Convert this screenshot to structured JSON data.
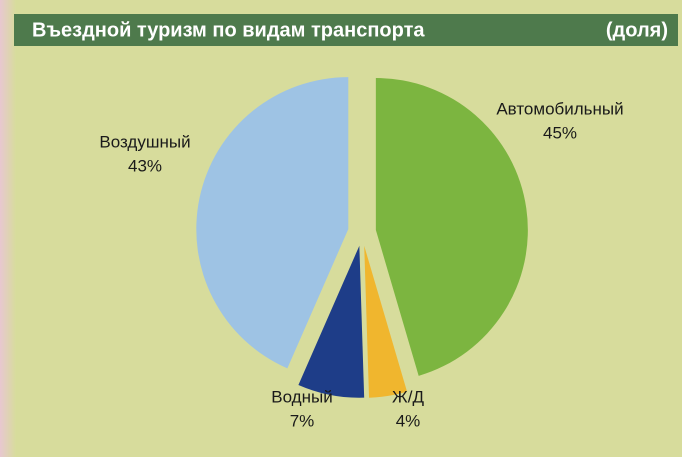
{
  "chart_data": {
    "type": "pie",
    "title": "Въездной туризм по видам транспорта",
    "subtitle": "(доля)",
    "categories": [
      "Автомобильный",
      "Ж/Д",
      "Водный",
      "Воздушный"
    ],
    "values": [
      45,
      4,
      7,
      43
    ],
    "value_labels": [
      "45%",
      "4%",
      "7%",
      "43%"
    ],
    "colors": [
      "#7cb540",
      "#f0b62e",
      "#1e3d88",
      "#9ec3e4"
    ]
  }
}
